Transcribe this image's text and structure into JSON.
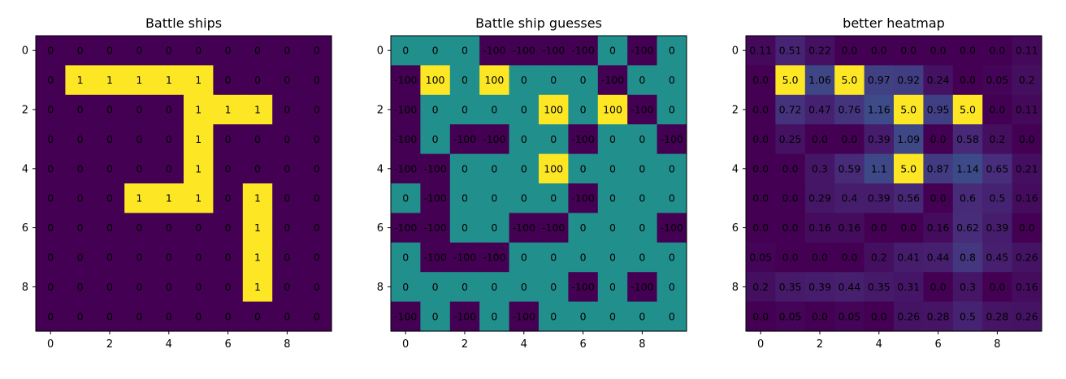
{
  "chart_data": [
    {
      "type": "heatmap",
      "title": "Battle ships",
      "colormap": "viridis",
      "vmin": 0,
      "vmax": 1,
      "x_ticks": [
        0,
        2,
        4,
        6,
        8
      ],
      "y_ticks": [
        0,
        2,
        4,
        6,
        8
      ],
      "values": [
        [
          0,
          0,
          0,
          0,
          0,
          0,
          0,
          0,
          0,
          0
        ],
        [
          0,
          1,
          1,
          1,
          1,
          1,
          0,
          0,
          0,
          0
        ],
        [
          0,
          0,
          0,
          0,
          0,
          1,
          1,
          1,
          0,
          0
        ],
        [
          0,
          0,
          0,
          0,
          0,
          1,
          0,
          0,
          0,
          0
        ],
        [
          0,
          0,
          0,
          0,
          0,
          1,
          0,
          0,
          0,
          0
        ],
        [
          0,
          0,
          0,
          1,
          1,
          1,
          0,
          1,
          0,
          0
        ],
        [
          0,
          0,
          0,
          0,
          0,
          0,
          0,
          1,
          0,
          0
        ],
        [
          0,
          0,
          0,
          0,
          0,
          0,
          0,
          1,
          0,
          0
        ],
        [
          0,
          0,
          0,
          0,
          0,
          0,
          0,
          1,
          0,
          0
        ],
        [
          0,
          0,
          0,
          0,
          0,
          0,
          0,
          0,
          0,
          0
        ]
      ],
      "labels": [
        [
          "0",
          "0",
          "0",
          "0",
          "0",
          "0",
          "0",
          "0",
          "0",
          "0"
        ],
        [
          "0",
          "1",
          "1",
          "1",
          "1",
          "1",
          "0",
          "0",
          "0",
          "0"
        ],
        [
          "0",
          "0",
          "0",
          "0",
          "0",
          "1",
          "1",
          "1",
          "0",
          "0"
        ],
        [
          "0",
          "0",
          "0",
          "0",
          "0",
          "1",
          "0",
          "0",
          "0",
          "0"
        ],
        [
          "0",
          "0",
          "0",
          "0",
          "0",
          "1",
          "0",
          "0",
          "0",
          "0"
        ],
        [
          "0",
          "0",
          "0",
          "1",
          "1",
          "1",
          "0",
          "1",
          "0",
          "0"
        ],
        [
          "0",
          "0",
          "0",
          "0",
          "0",
          "0",
          "0",
          "1",
          "0",
          "0"
        ],
        [
          "0",
          "0",
          "0",
          "0",
          "0",
          "0",
          "0",
          "1",
          "0",
          "0"
        ],
        [
          "0",
          "0",
          "0",
          "0",
          "0",
          "0",
          "0",
          "1",
          "0",
          "0"
        ],
        [
          "0",
          "0",
          "0",
          "0",
          "0",
          "0",
          "0",
          "0",
          "0",
          "0"
        ]
      ]
    },
    {
      "type": "heatmap",
      "title": "Battle ship guesses",
      "colormap": "viridis",
      "vmin": -100,
      "vmax": 100,
      "x_ticks": [
        0,
        2,
        4,
        6,
        8
      ],
      "y_ticks": [
        0,
        2,
        4,
        6,
        8
      ],
      "values": [
        [
          0,
          0,
          0,
          -100,
          -100,
          -100,
          -100,
          0,
          -100,
          0
        ],
        [
          -100,
          100,
          0,
          100,
          0,
          0,
          0,
          -100,
          0,
          0
        ],
        [
          -100,
          0,
          0,
          0,
          0,
          100,
          0,
          100,
          -100,
          0
        ],
        [
          -100,
          0,
          -100,
          -100,
          0,
          0,
          -100,
          0,
          0,
          -100
        ],
        [
          -100,
          -100,
          0,
          0,
          0,
          100,
          0,
          0,
          0,
          0
        ],
        [
          0,
          -100,
          0,
          0,
          0,
          0,
          -100,
          0,
          0,
          0
        ],
        [
          -100,
          -100,
          0,
          0,
          -100,
          -100,
          0,
          0,
          0,
          -100
        ],
        [
          0,
          -100,
          -100,
          -100,
          0,
          0,
          0,
          0,
          0,
          0
        ],
        [
          0,
          0,
          0,
          0,
          0,
          0,
          -100,
          0,
          -100,
          0
        ],
        [
          -100,
          0,
          -100,
          0,
          -100,
          0,
          0,
          0,
          0,
          0
        ]
      ],
      "labels": [
        [
          "0",
          "0",
          "0",
          "-100",
          "-100",
          "-100",
          "-100",
          "0",
          "-100",
          "0"
        ],
        [
          "-100",
          "100",
          "0",
          "100",
          "0",
          "0",
          "0",
          "-100",
          "0",
          "0"
        ],
        [
          "-100",
          "0",
          "0",
          "0",
          "0",
          "100",
          "0",
          "100",
          "-100",
          "0"
        ],
        [
          "-100",
          "0",
          "-100",
          "-100",
          "0",
          "0",
          "-100",
          "0",
          "0",
          "-100"
        ],
        [
          "-100",
          "-100",
          "0",
          "0",
          "0",
          "100",
          "0",
          "0",
          "0",
          "0"
        ],
        [
          "0",
          "-100",
          "0",
          "0",
          "0",
          "0",
          "-100",
          "0",
          "0",
          "0"
        ],
        [
          "-100",
          "-100",
          "0",
          "0",
          "-100",
          "-100",
          "0",
          "0",
          "0",
          "-100"
        ],
        [
          "0",
          "-100",
          "-100",
          "-100",
          "0",
          "0",
          "0",
          "0",
          "0",
          "0"
        ],
        [
          "0",
          "0",
          "0",
          "0",
          "0",
          "0",
          "-100",
          "0",
          "-100",
          "0"
        ],
        [
          "-100",
          "0",
          "-100",
          "0",
          "-100",
          "0",
          "0",
          "0",
          "0",
          "0"
        ]
      ]
    },
    {
      "type": "heatmap",
      "title": "better heatmap",
      "colormap": "viridis",
      "vmin": 0,
      "vmax": 5,
      "x_ticks": [
        0,
        2,
        4,
        6,
        8
      ],
      "y_ticks": [
        0,
        2,
        4,
        6,
        8
      ],
      "values": [
        [
          0.11,
          0.51,
          0.22,
          0.0,
          0.0,
          0.0,
          0.0,
          0.0,
          0.0,
          0.11
        ],
        [
          0.0,
          5.0,
          1.06,
          5.0,
          0.97,
          0.92,
          0.24,
          0.0,
          0.05,
          0.2
        ],
        [
          0.0,
          0.72,
          0.47,
          0.76,
          1.16,
          5.0,
          0.95,
          5.0,
          0.0,
          0.11
        ],
        [
          0.0,
          0.25,
          0.0,
          0.0,
          0.39,
          1.09,
          0.0,
          0.58,
          0.2,
          0.0
        ],
        [
          0.0,
          0.0,
          0.3,
          0.59,
          1.1,
          5.0,
          0.87,
          1.14,
          0.65,
          0.21
        ],
        [
          0.0,
          0.0,
          0.29,
          0.4,
          0.39,
          0.56,
          0.0,
          0.6,
          0.5,
          0.16
        ],
        [
          0.0,
          0.0,
          0.16,
          0.16,
          0.0,
          0.0,
          0.16,
          0.62,
          0.39,
          0.0
        ],
        [
          0.05,
          0.0,
          0.0,
          0.0,
          0.2,
          0.41,
          0.44,
          0.8,
          0.45,
          0.26
        ],
        [
          0.2,
          0.35,
          0.39,
          0.44,
          0.35,
          0.31,
          0.0,
          0.3,
          0.0,
          0.16
        ],
        [
          0.0,
          0.05,
          0.0,
          0.05,
          0.0,
          0.26,
          0.28,
          0.5,
          0.28,
          0.26
        ]
      ],
      "labels": [
        [
          "0.11",
          "0.51",
          "0.22",
          "0.0",
          "0.0",
          "0.0",
          "0.0",
          "0.0",
          "0.0",
          "0.11"
        ],
        [
          "0.0",
          "5.0",
          "1.06",
          "5.0",
          "0.97",
          "0.92",
          "0.24",
          "0.0",
          "0.05",
          "0.2"
        ],
        [
          "0.0",
          "0.72",
          "0.47",
          "0.76",
          "1.16",
          "5.0",
          "0.95",
          "5.0",
          "0.0",
          "0.11"
        ],
        [
          "0.0",
          "0.25",
          "0.0",
          "0.0",
          "0.39",
          "1.09",
          "0.0",
          "0.58",
          "0.2",
          "0.0"
        ],
        [
          "0.0",
          "0.0",
          "0.3",
          "0.59",
          "1.1",
          "5.0",
          "0.87",
          "1.14",
          "0.65",
          "0.21"
        ],
        [
          "0.0",
          "0.0",
          "0.29",
          "0.4",
          "0.39",
          "0.56",
          "0.0",
          "0.6",
          "0.5",
          "0.16"
        ],
        [
          "0.0",
          "0.0",
          "0.16",
          "0.16",
          "0.0",
          "0.0",
          "0.16",
          "0.62",
          "0.39",
          "0.0"
        ],
        [
          "0.05",
          "0.0",
          "0.0",
          "0.0",
          "0.2",
          "0.41",
          "0.44",
          "0.8",
          "0.45",
          "0.26"
        ],
        [
          "0.2",
          "0.35",
          "0.39",
          "0.44",
          "0.35",
          "0.31",
          "0.0",
          "0.3",
          "0.0",
          "0.16"
        ],
        [
          "0.0",
          "0.05",
          "0.0",
          "0.05",
          "0.0",
          "0.26",
          "0.28",
          "0.5",
          "0.28",
          "0.26"
        ]
      ]
    }
  ]
}
